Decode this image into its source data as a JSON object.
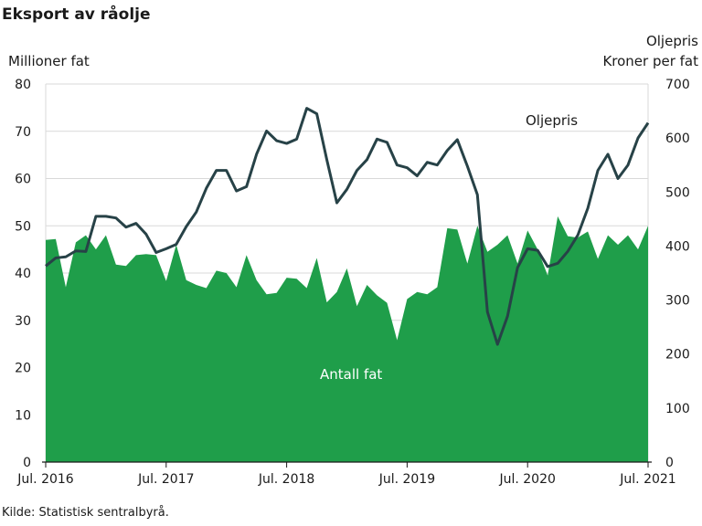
{
  "title": "Eksport av råolje",
  "left_axis_label": "Millioner fat",
  "right_axis_label_1": "Oljepris",
  "right_axis_label_2": "Kroner per fat",
  "source": "Kilde: Statistisk sentralbyrå.",
  "chart_data": {
    "type": "area+line",
    "x_tick_labels": [
      "Jul. 2016",
      "Jul. 2017",
      "Jul. 2018",
      "Jul. 2019",
      "Jul. 2020",
      "Jul. 2021"
    ],
    "x_start": "2016-07",
    "x_end": "2021-07",
    "left_ylim": [
      0,
      80
    ],
    "left_yticks": [
      0,
      10,
      20,
      30,
      40,
      50,
      60,
      70,
      80
    ],
    "right_ylim": [
      0,
      700
    ],
    "right_yticks": [
      0,
      100,
      200,
      300,
      400,
      500,
      600,
      700
    ],
    "grid": "horizontal",
    "series": [
      {
        "name": "Antall fat",
        "kind": "area",
        "axis": "left",
        "color": "#1f9e4a",
        "values": [
          47,
          47.2,
          37,
          46.5,
          48,
          45,
          48,
          41.8,
          41.5,
          43.8,
          44,
          43.8,
          38.3,
          46,
          38.5,
          37.5,
          36.8,
          40.5,
          40,
          37,
          43.8,
          38.5,
          35.5,
          35.8,
          39,
          38.8,
          36.8,
          43.2,
          33.8,
          36,
          41,
          33,
          37.5,
          35.3,
          33.7,
          25.8,
          34.5,
          36,
          35.5,
          37,
          49.5,
          49.2,
          42,
          50,
          44.5,
          46,
          48,
          42,
          49,
          45,
          39.5,
          52,
          47.8,
          47.5,
          48.8,
          43,
          48,
          46,
          48,
          45,
          50
        ]
      },
      {
        "name": "Oljepris",
        "kind": "line",
        "axis": "right",
        "color": "#274247",
        "values": [
          363,
          378,
          380,
          391,
          390,
          455,
          455,
          452,
          435,
          442,
          422,
          388,
          395,
          403,
          436,
          463,
          507,
          540,
          540,
          502,
          510,
          570,
          613,
          595,
          590,
          598,
          655,
          645,
          560,
          480,
          505,
          540,
          560,
          598,
          592,
          550,
          545,
          530,
          555,
          550,
          577,
          597,
          548,
          495,
          278,
          218,
          270,
          360,
          395,
          392,
          362,
          368,
          390,
          420,
          470,
          540,
          570,
          525,
          550,
          600,
          628
        ]
      }
    ],
    "annotations": [
      "Oljepris",
      "Antall fat"
    ]
  }
}
